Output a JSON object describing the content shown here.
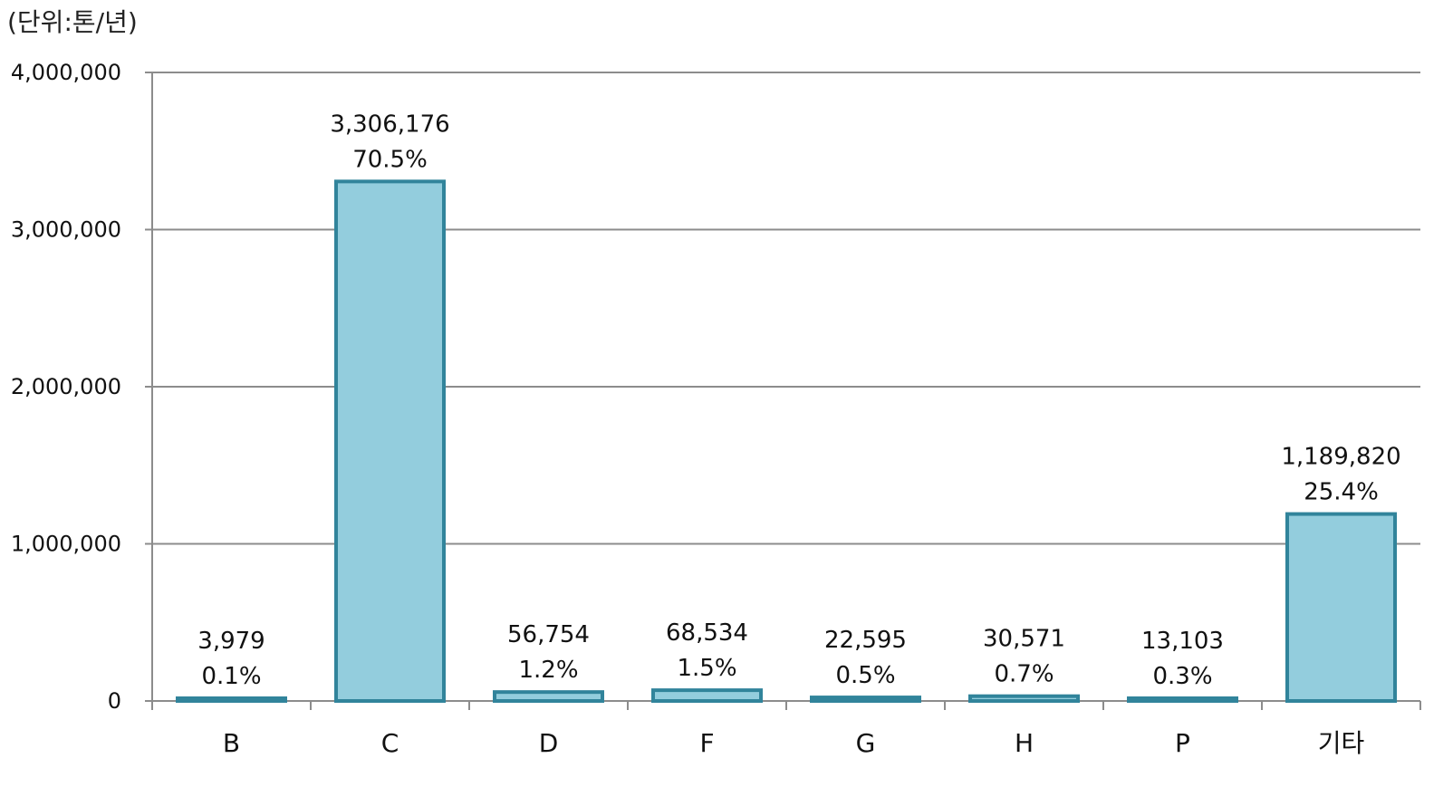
{
  "chart_data": {
    "type": "bar",
    "unit_label": "(단위:톤/년)",
    "categories": [
      "B",
      "C",
      "D",
      "F",
      "G",
      "H",
      "P",
      "기타"
    ],
    "values": [
      3979,
      3306176,
      56754,
      68534,
      22595,
      30571,
      13103,
      1189820
    ],
    "value_labels": [
      "3,979",
      "3,306,176",
      "56,754",
      "68,534",
      "22,595",
      "30,571",
      "13,103",
      "1,189,820"
    ],
    "percent_labels": [
      "0.1%",
      "70.5%",
      "1.2%",
      "1.5%",
      "0.5%",
      "0.7%",
      "0.3%",
      "25.4%"
    ],
    "ylim": [
      0,
      4000000
    ],
    "yticks": [
      0,
      1000000,
      2000000,
      3000000,
      4000000
    ],
    "ytick_labels": [
      "0",
      "1,000,000",
      "2,000,000",
      "3,000,000",
      "4,000,000"
    ],
    "grid": true,
    "legend": "none",
    "colors": {
      "bar_fill": "#93CDDD",
      "bar_stroke": "#31849B",
      "grid": "#8C8C8C",
      "axis": "#8C8C8C"
    }
  }
}
